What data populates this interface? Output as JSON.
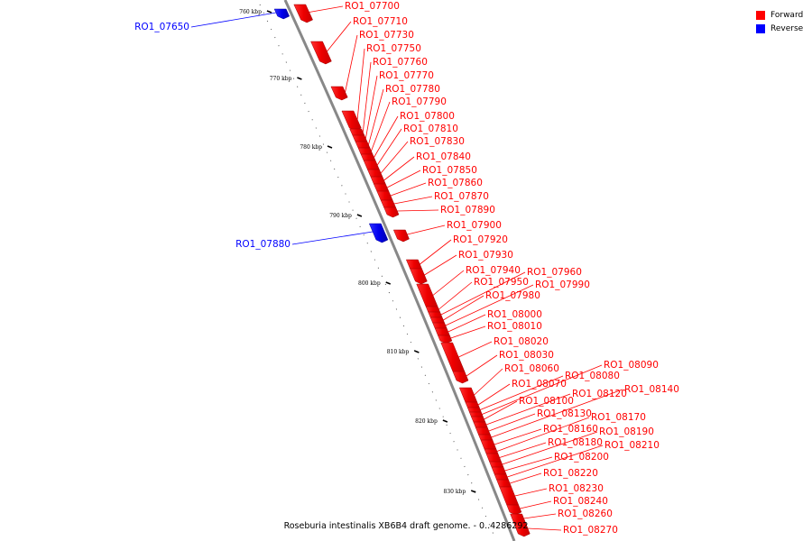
{
  "caption": "Roseburia intestinalis XB6B4 draft genome. - 0..4286292",
  "legend": [
    {
      "label": "Forward",
      "color": "#ff0000"
    },
    {
      "label": "Reverse",
      "color": "#0000ff"
    }
  ],
  "axis": {
    "ticks": [
      "760 kbp",
      "770 kbp",
      "780 kbp",
      "790 kbp",
      "800 kbp",
      "810 kbp",
      "820 kbp",
      "830 kbp"
    ]
  },
  "genes": [
    {
      "name": "RO1_07650",
      "strand": "reverse"
    },
    {
      "name": "RO1_07700",
      "strand": "forward"
    },
    {
      "name": "RO1_07710",
      "strand": "forward"
    },
    {
      "name": "RO1_07730",
      "strand": "forward"
    },
    {
      "name": "RO1_07750",
      "strand": "forward"
    },
    {
      "name": "RO1_07760",
      "strand": "forward"
    },
    {
      "name": "RO1_07770",
      "strand": "forward"
    },
    {
      "name": "RO1_07780",
      "strand": "forward"
    },
    {
      "name": "RO1_07790",
      "strand": "forward"
    },
    {
      "name": "RO1_07800",
      "strand": "forward"
    },
    {
      "name": "RO1_07810",
      "strand": "forward"
    },
    {
      "name": "RO1_07830",
      "strand": "forward"
    },
    {
      "name": "RO1_07840",
      "strand": "forward"
    },
    {
      "name": "RO1_07850",
      "strand": "forward"
    },
    {
      "name": "RO1_07860",
      "strand": "forward"
    },
    {
      "name": "RO1_07870",
      "strand": "forward"
    },
    {
      "name": "RO1_07880",
      "strand": "reverse"
    },
    {
      "name": "RO1_07890",
      "strand": "forward"
    },
    {
      "name": "RO1_07900",
      "strand": "forward"
    },
    {
      "name": "RO1_07920",
      "strand": "forward"
    },
    {
      "name": "RO1_07930",
      "strand": "forward"
    },
    {
      "name": "RO1_07940",
      "strand": "forward"
    },
    {
      "name": "RO1_07950",
      "strand": "forward"
    },
    {
      "name": "RO1_07960",
      "strand": "forward"
    },
    {
      "name": "RO1_07980",
      "strand": "forward"
    },
    {
      "name": "RO1_07990",
      "strand": "forward"
    },
    {
      "name": "RO1_08000",
      "strand": "forward"
    },
    {
      "name": "RO1_08010",
      "strand": "forward"
    },
    {
      "name": "RO1_08020",
      "strand": "forward"
    },
    {
      "name": "RO1_08030",
      "strand": "forward"
    },
    {
      "name": "RO1_08060",
      "strand": "forward"
    },
    {
      "name": "RO1_08070",
      "strand": "forward"
    },
    {
      "name": "RO1_08080",
      "strand": "forward"
    },
    {
      "name": "RO1_08090",
      "strand": "forward"
    },
    {
      "name": "RO1_08100",
      "strand": "forward"
    },
    {
      "name": "RO1_08120",
      "strand": "forward"
    },
    {
      "name": "RO1_08130",
      "strand": "forward"
    },
    {
      "name": "RO1_08140",
      "strand": "forward"
    },
    {
      "name": "RO1_08160",
      "strand": "forward"
    },
    {
      "name": "RO1_08170",
      "strand": "forward"
    },
    {
      "name": "RO1_08180",
      "strand": "forward"
    },
    {
      "name": "RO1_08190",
      "strand": "forward"
    },
    {
      "name": "RO1_08200",
      "strand": "forward"
    },
    {
      "name": "RO1_08210",
      "strand": "forward"
    },
    {
      "name": "RO1_08220",
      "strand": "forward"
    },
    {
      "name": "RO1_08230",
      "strand": "forward"
    },
    {
      "name": "RO1_08240",
      "strand": "forward"
    },
    {
      "name": "RO1_08260",
      "strand": "forward"
    },
    {
      "name": "RO1_08270",
      "strand": "forward"
    }
  ]
}
